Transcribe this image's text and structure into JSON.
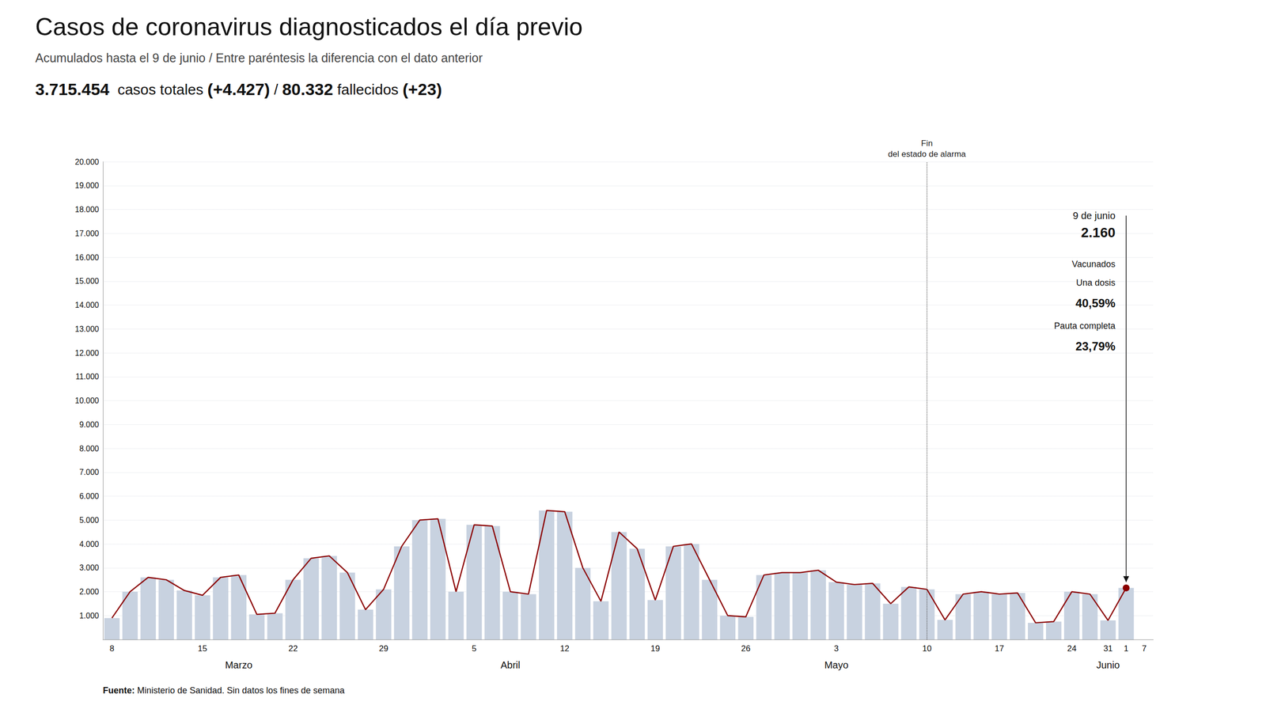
{
  "chart_data": {
    "type": "bar",
    "title": "Casos de coronavirus diagnosticados el día previo",
    "subtitle": "Acumulados hasta el 9 de junio / Entre paréntesis la diferencia con el dato anterior",
    "stat_line": [
      {
        "text": "3.715.454",
        "bold": true
      },
      {
        "text": "  casos totales ",
        "bold": false
      },
      {
        "text": "(+4.427)",
        "bold": true
      },
      {
        "text": " / ",
        "bold": false
      },
      {
        "text": "80.332",
        "bold": true
      },
      {
        "text": " fallecidos ",
        "bold": false
      },
      {
        "text": "(+23)",
        "bold": true
      }
    ],
    "source": [
      {
        "text": "Fuente:",
        "bold": true
      },
      {
        "text": " Ministerio de Sanidad. Sin datos los fines de semana",
        "bold": false
      }
    ],
    "categories": [
      "8",
      null,
      null,
      null,
      null,
      "15",
      null,
      null,
      null,
      null,
      "22",
      null,
      null,
      null,
      null,
      "29",
      null,
      null,
      null,
      null,
      "5",
      null,
      null,
      null,
      null,
      "12",
      null,
      null,
      null,
      null,
      "19",
      null,
      null,
      null,
      null,
      "26",
      null,
      null,
      null,
      null,
      "3",
      null,
      null,
      null,
      null,
      "10",
      null,
      null,
      null,
      "17",
      null,
      null,
      null,
      "24",
      null,
      "31",
      "1",
      "7"
    ],
    "month_labels": [
      null,
      null,
      null,
      null,
      null,
      null,
      null,
      "Marzo",
      null,
      null,
      null,
      null,
      null,
      null,
      null,
      null,
      null,
      null,
      null,
      null,
      null,
      null,
      "Abril",
      null,
      null,
      null,
      null,
      null,
      null,
      null,
      null,
      null,
      null,
      null,
      null,
      null,
      null,
      null,
      null,
      null,
      "Mayo",
      null,
      null,
      null,
      null,
      null,
      null,
      null,
      null,
      null,
      null,
      null,
      null,
      null,
      null,
      "Junio",
      null,
      null
    ],
    "series": [
      {
        "type": "bar",
        "color": "#c8d2e0",
        "values": [
          900,
          2000,
          2600,
          2500,
          2050,
          1850,
          2600,
          2700,
          1050,
          1100,
          2500,
          3400,
          3500,
          2800,
          1250,
          2100,
          3900,
          5000,
          5050,
          2000,
          4800,
          4750,
          2000,
          1900,
          5400,
          5350,
          3000,
          1600,
          4500,
          3800,
          1650,
          3900,
          4000,
          2500,
          1000,
          950,
          2700,
          2800,
          2800,
          2900,
          2400,
          2300,
          2350,
          1500,
          2200,
          2100,
          820,
          1900,
          2000,
          1900,
          1950,
          700,
          750,
          2000,
          1900,
          800,
          2160,
          null
        ]
      },
      {
        "type": "line",
        "color": "#8b0000",
        "values": [
          900,
          2000,
          2600,
          2500,
          2050,
          1850,
          2600,
          2700,
          1050,
          1100,
          2500,
          3400,
          3500,
          2800,
          1250,
          2100,
          3900,
          5000,
          5050,
          2000,
          4800,
          4750,
          2000,
          1900,
          5400,
          5350,
          3000,
          1600,
          4500,
          3800,
          1650,
          3900,
          4000,
          2500,
          1000,
          950,
          2700,
          2800,
          2800,
          2900,
          2400,
          2300,
          2350,
          1500,
          2200,
          2100,
          820,
          1900,
          2000,
          1900,
          1950,
          700,
          750,
          2000,
          1900,
          800,
          2160,
          null
        ]
      }
    ],
    "ylim": [
      0,
      20000
    ],
    "yticks": [
      {
        "value": 1000,
        "label": "1.000"
      },
      {
        "value": 2000,
        "label": "2.000"
      },
      {
        "value": 3000,
        "label": "3.000"
      },
      {
        "value": 4000,
        "label": "4.000"
      },
      {
        "value": 5000,
        "label": "5.000"
      },
      {
        "value": 6000,
        "label": "6.000"
      },
      {
        "value": 7000,
        "label": "7.000"
      },
      {
        "value": 8000,
        "label": "8.000"
      },
      {
        "value": 9000,
        "label": "9.000"
      },
      {
        "value": 10000,
        "label": "10.000"
      },
      {
        "value": 11000,
        "label": "11.000"
      },
      {
        "value": 12000,
        "label": "12.000"
      },
      {
        "value": 13000,
        "label": "13.000"
      },
      {
        "value": 14000,
        "label": "14.000"
      },
      {
        "value": 15000,
        "label": "15.000"
      },
      {
        "value": 16000,
        "label": "16.000"
      },
      {
        "value": 17000,
        "label": "17.000"
      },
      {
        "value": 18000,
        "label": "18.000"
      },
      {
        "value": 19000,
        "label": "19.000"
      },
      {
        "value": 20000,
        "label": "20.000"
      }
    ],
    "grid": true,
    "vline": {
      "category_index": 45,
      "label": "Fin\ndel estado de alarma"
    },
    "highlight": {
      "category_index": 56,
      "value": 2160,
      "label": "2.160",
      "date": "9 de junio"
    },
    "vaccination": [
      {
        "text": "Vacunados",
        "bold": false
      },
      {
        "text": "Una dosis",
        "bold": false
      },
      {
        "text": "40,59%",
        "bold": true
      },
      {
        "text": "Pauta completa",
        "bold": false
      },
      {
        "text": "23,79%",
        "bold": true
      }
    ]
  }
}
